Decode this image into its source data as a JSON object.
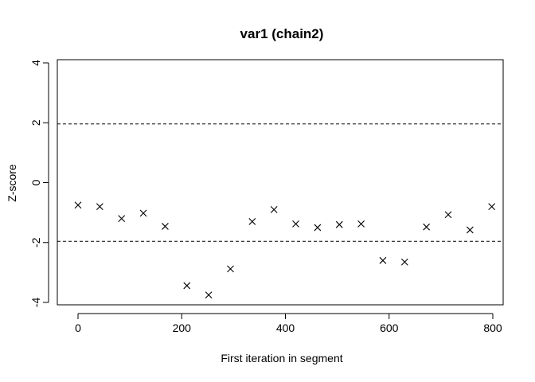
{
  "chart_data": {
    "type": "scatter",
    "title": "var1 (chain2)",
    "xlabel": "First iteration in segment",
    "ylabel": "Z-score",
    "xlim": [
      -30,
      815
    ],
    "ylim": [
      -4,
      4
    ],
    "x_ticks": [
      0,
      200,
      400,
      600,
      800
    ],
    "y_ticks": [
      -4,
      -2,
      0,
      2,
      4
    ],
    "x_tick_labels": [
      "0",
      "200",
      "400",
      "600",
      "800"
    ],
    "y_tick_labels": [
      "-4",
      "-2",
      "0",
      "2",
      "4"
    ],
    "reference_lines": [
      1.96,
      -1.96
    ],
    "marker": "x",
    "grid": false,
    "series": [
      {
        "x": [
          0,
          42,
          84,
          126,
          168,
          210,
          252,
          294,
          336,
          378,
          420,
          462,
          504,
          546,
          588,
          630,
          672,
          714,
          756,
          798
        ],
        "y": [
          -0.75,
          -0.8,
          -1.2,
          -1.02,
          -1.46,
          -3.44,
          -3.75,
          -2.88,
          -1.3,
          -0.9,
          -1.38,
          -1.5,
          -1.4,
          -1.38,
          -2.6,
          -2.65,
          -1.48,
          -1.07,
          -1.58,
          -0.8
        ]
      }
    ]
  }
}
